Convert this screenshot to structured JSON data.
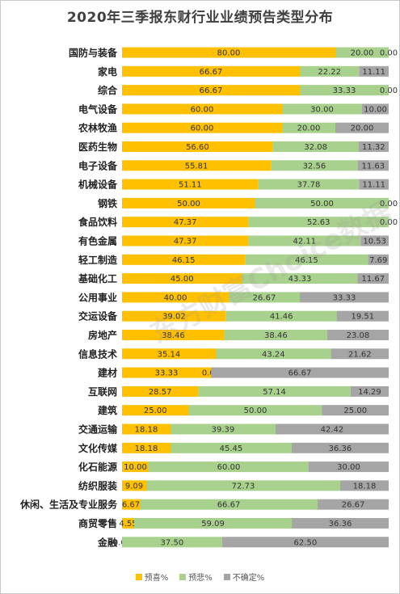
{
  "chart_data": {
    "type": "bar",
    "stacked": true,
    "orientation": "horizontal",
    "title": "2020年三季报东财行业业绩预告类型分布",
    "categories": [
      "国防与装备",
      "家电",
      "综合",
      "电气设备",
      "农林牧渔",
      "医药生物",
      "电子设备",
      "机械设备",
      "钢铁",
      "食品饮料",
      "有色金属",
      "轻工制造",
      "基础化工",
      "公用事业",
      "交运设备",
      "房地产",
      "信息技术",
      "建材",
      "互联网",
      "建筑",
      "交通运输",
      "文化传媒",
      "化石能源",
      "纺织服装",
      "休闲、生活及专业服务",
      "商贸零售",
      "金融"
    ],
    "series": [
      {
        "name": "预喜%",
        "color": "#ffc000",
        "values": [
          80.0,
          66.67,
          66.67,
          60.0,
          60.0,
          56.6,
          55.81,
          51.11,
          50.0,
          47.37,
          47.37,
          46.15,
          45.0,
          40.0,
          39.02,
          38.46,
          35.14,
          33.33,
          28.57,
          25.0,
          18.18,
          18.18,
          10.0,
          9.09,
          6.67,
          4.55,
          0.0
        ]
      },
      {
        "name": "预悲%",
        "color": "#a9d18e",
        "values": [
          20.0,
          22.22,
          33.33,
          30.0,
          20.0,
          32.08,
          32.56,
          37.78,
          50.0,
          52.63,
          42.11,
          46.15,
          43.33,
          26.67,
          41.46,
          38.46,
          43.24,
          0.0,
          57.14,
          50.0,
          39.39,
          45.45,
          60.0,
          72.73,
          66.67,
          59.09,
          37.5
        ]
      },
      {
        "name": "不确定%",
        "color": "#a5a5a5",
        "values": [
          0.0,
          11.11,
          0.0,
          10.0,
          20.0,
          11.32,
          11.63,
          11.11,
          0.0,
          0.0,
          10.53,
          7.69,
          11.67,
          33.33,
          19.51,
          23.08,
          21.62,
          66.67,
          14.29,
          25.0,
          42.42,
          36.36,
          30.0,
          18.18,
          26.67,
          36.36,
          62.5
        ]
      }
    ],
    "xlim": [
      0,
      100
    ],
    "legend_position": "bottom",
    "grid": false
  },
  "watermark": "东方财富Choice数据"
}
